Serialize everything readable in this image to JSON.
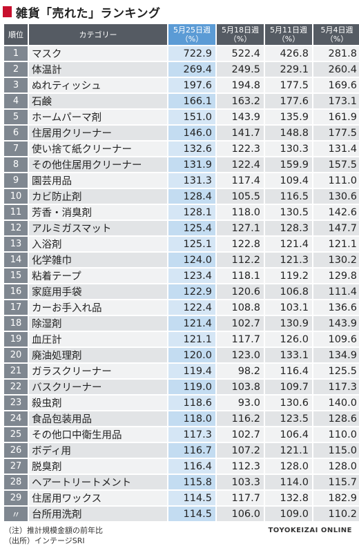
{
  "title": "雑貨「売れた」ランキング",
  "headers": {
    "rank": "順位",
    "category": "カテゴリー",
    "weeks": [
      {
        "date": "5月25日週",
        "unit": "（%）"
      },
      {
        "date": "5月18日週",
        "unit": "（%）"
      },
      {
        "date": "5月11日週",
        "unit": "（%）"
      },
      {
        "date": "5月4日週",
        "unit": "（%）"
      }
    ]
  },
  "rows": [
    {
      "rank": "1",
      "category": "マスク",
      "values": [
        "722.9",
        "522.4",
        "426.8",
        "281.8"
      ]
    },
    {
      "rank": "2",
      "category": "体温計",
      "values": [
        "269.4",
        "249.5",
        "229.1",
        "260.4"
      ]
    },
    {
      "rank": "3",
      "category": "ぬれティッシュ",
      "values": [
        "197.6",
        "194.8",
        "177.5",
        "169.6"
      ]
    },
    {
      "rank": "4",
      "category": "石鹸",
      "values": [
        "166.1",
        "163.2",
        "177.6",
        "173.1"
      ]
    },
    {
      "rank": "5",
      "category": "ホームパーマ剤",
      "values": [
        "151.0",
        "143.9",
        "135.9",
        "161.9"
      ]
    },
    {
      "rank": "6",
      "category": "住居用クリーナー",
      "values": [
        "146.0",
        "141.7",
        "148.8",
        "177.5"
      ]
    },
    {
      "rank": "7",
      "category": "使い捨て紙クリーナー",
      "values": [
        "132.6",
        "122.3",
        "130.3",
        "131.4"
      ]
    },
    {
      "rank": "8",
      "category": "その他住居用クリーナー",
      "values": [
        "131.9",
        "122.4",
        "159.9",
        "157.5"
      ]
    },
    {
      "rank": "9",
      "category": "園芸用品",
      "values": [
        "131.3",
        "117.4",
        "109.4",
        "111.0"
      ]
    },
    {
      "rank": "10",
      "category": "カビ防止剤",
      "values": [
        "128.4",
        "105.5",
        "116.5",
        "130.6"
      ]
    },
    {
      "rank": "11",
      "category": "芳香・消臭剤",
      "values": [
        "128.1",
        "118.0",
        "130.5",
        "142.6"
      ]
    },
    {
      "rank": "12",
      "category": "アルミガスマット",
      "values": [
        "125.4",
        "127.1",
        "128.3",
        "147.7"
      ]
    },
    {
      "rank": "13",
      "category": "入浴剤",
      "values": [
        "125.1",
        "122.8",
        "121.4",
        "121.1"
      ]
    },
    {
      "rank": "14",
      "category": "化学雑巾",
      "values": [
        "124.0",
        "112.2",
        "121.3",
        "130.2"
      ]
    },
    {
      "rank": "15",
      "category": "粘着テープ",
      "values": [
        "123.4",
        "118.1",
        "119.2",
        "129.8"
      ]
    },
    {
      "rank": "16",
      "category": "家庭用手袋",
      "values": [
        "122.9",
        "120.6",
        "106.8",
        "111.4"
      ]
    },
    {
      "rank": "17",
      "category": "カーお手入れ品",
      "values": [
        "122.4",
        "108.8",
        "103.1",
        "136.6"
      ]
    },
    {
      "rank": "18",
      "category": "除湿剤",
      "values": [
        "121.4",
        "102.7",
        "130.9",
        "143.9"
      ]
    },
    {
      "rank": "19",
      "category": "血圧計",
      "values": [
        "121.1",
        "117.7",
        "126.0",
        "109.6"
      ]
    },
    {
      "rank": "20",
      "category": "廃油処理剤",
      "values": [
        "120.0",
        "123.0",
        "133.1",
        "134.9"
      ]
    },
    {
      "rank": "21",
      "category": "ガラスクリーナー",
      "values": [
        "119.4",
        "98.2",
        "116.4",
        "125.5"
      ]
    },
    {
      "rank": "22",
      "category": "バスクリーナー",
      "values": [
        "119.0",
        "103.8",
        "109.7",
        "117.3"
      ]
    },
    {
      "rank": "23",
      "category": "殺虫剤",
      "values": [
        "118.6",
        "93.0",
        "130.6",
        "140.0"
      ]
    },
    {
      "rank": "24",
      "category": "食品包装用品",
      "values": [
        "118.0",
        "116.2",
        "123.5",
        "128.6"
      ]
    },
    {
      "rank": "25",
      "category": "その他口中衛生用品",
      "values": [
        "117.3",
        "102.7",
        "106.4",
        "110.0"
      ]
    },
    {
      "rank": "26",
      "category": "ボディ用",
      "values": [
        "116.7",
        "107.2",
        "121.1",
        "115.0"
      ]
    },
    {
      "rank": "27",
      "category": "脱臭剤",
      "values": [
        "116.4",
        "112.3",
        "128.0",
        "128.0"
      ]
    },
    {
      "rank": "28",
      "category": "ヘアートリートメント",
      "values": [
        "115.8",
        "103.3",
        "114.0",
        "115.7"
      ]
    },
    {
      "rank": "29",
      "category": "住居用ワックス",
      "values": [
        "114.5",
        "117.7",
        "132.8",
        "182.9"
      ]
    },
    {
      "rank": "〃",
      "category": "台所用洗剤",
      "values": [
        "114.5",
        "106.0",
        "109.0",
        "110.2"
      ]
    }
  ],
  "notes": [
    "（注）推計規模金額の前年比",
    "（出所）インテージSRI"
  ],
  "brand": "TOYOKEIZAI ONLINE",
  "colors": {
    "accent": "#c8102e",
    "header": "#555b63",
    "highlight": "#5b9bd5",
    "rank_cell": "#7f8790"
  }
}
